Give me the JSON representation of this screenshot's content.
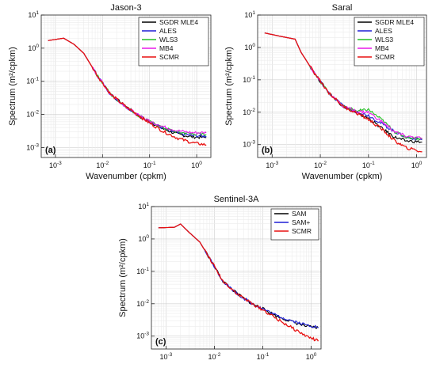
{
  "figure": {
    "panels": [
      "(a)",
      "(b)",
      "(c)"
    ]
  },
  "chart_data": [
    {
      "type": "line",
      "title": "Jason-3",
      "panel_label": "(a)",
      "xlabel": "Wavenumber (cpkm)",
      "ylabel": "Spectrum (m²/cpkm)",
      "xscale": "log",
      "yscale": "log",
      "xlim": [
        0.0005,
        2
      ],
      "ylim": [
        0.0005,
        10
      ],
      "xticks": [
        "10-3",
        "10-2",
        "10-1",
        "100"
      ],
      "yticks": [
        "10-3",
        "10-2",
        "10-1",
        "100",
        "101"
      ],
      "grid": true,
      "legend_position": "top-right",
      "series": [
        {
          "name": "SGDR MLE4",
          "color": "#000000",
          "x": [
            0.0007,
            0.0015,
            0.0025,
            0.004,
            0.008,
            0.015,
            0.03,
            0.06,
            0.1,
            0.2,
            0.4,
            0.8,
            1.6
          ],
          "y": [
            1.7,
            2.0,
            1.3,
            0.7,
            0.14,
            0.04,
            0.018,
            0.009,
            0.006,
            0.0036,
            0.0025,
            0.0021,
            0.002
          ]
        },
        {
          "name": "ALES",
          "color": "#1f1fd6",
          "x": [
            0.0007,
            0.0015,
            0.0025,
            0.004,
            0.008,
            0.015,
            0.03,
            0.06,
            0.1,
            0.2,
            0.4,
            0.8,
            1.6
          ],
          "y": [
            1.7,
            2.0,
            1.3,
            0.7,
            0.14,
            0.04,
            0.018,
            0.009,
            0.006,
            0.0037,
            0.0027,
            0.0023,
            0.0022
          ]
        },
        {
          "name": "WLS3",
          "color": "#22c022",
          "x": [
            0.0007,
            0.0015,
            0.0025,
            0.004,
            0.008,
            0.015,
            0.03,
            0.06,
            0.1,
            0.2,
            0.4,
            0.8,
            1.6
          ],
          "y": [
            1.7,
            2.0,
            1.3,
            0.7,
            0.14,
            0.04,
            0.018,
            0.009,
            0.006,
            0.0039,
            0.0029,
            0.0026,
            0.0025
          ]
        },
        {
          "name": "MB4",
          "color": "#e81ae8",
          "x": [
            0.0007,
            0.0015,
            0.0025,
            0.004,
            0.008,
            0.015,
            0.03,
            0.06,
            0.1,
            0.2,
            0.4,
            0.8,
            1.6
          ],
          "y": [
            1.7,
            2.0,
            1.3,
            0.7,
            0.14,
            0.04,
            0.018,
            0.009,
            0.0062,
            0.0042,
            0.0032,
            0.0028,
            0.0028
          ]
        },
        {
          "name": "SCMR",
          "color": "#e81010",
          "x": [
            0.0007,
            0.0015,
            0.0025,
            0.004,
            0.008,
            0.015,
            0.03,
            0.06,
            0.1,
            0.2,
            0.4,
            0.8,
            1.6
          ],
          "y": [
            1.7,
            2.0,
            1.3,
            0.7,
            0.14,
            0.04,
            0.018,
            0.009,
            0.0055,
            0.003,
            0.0019,
            0.0014,
            0.0012
          ]
        }
      ]
    },
    {
      "type": "line",
      "title": "Saral",
      "panel_label": "(b)",
      "xlabel": "Wavenumber (cpkm)",
      "ylabel": "Spectrum (m²/cpkm)",
      "xscale": "log",
      "yscale": "log",
      "xlim": [
        0.0005,
        1.6
      ],
      "ylim": [
        0.0004,
        10
      ],
      "xticks": [
        "10-3",
        "10-2",
        "10-1",
        "100"
      ],
      "yticks": [
        "10-3",
        "10-2",
        "10-1",
        "100",
        "101"
      ],
      "grid": true,
      "legend_position": "top-right",
      "series": [
        {
          "name": "SGDR MLE4",
          "color": "#000000",
          "x": [
            0.0007,
            0.0015,
            0.003,
            0.004,
            0.008,
            0.015,
            0.03,
            0.06,
            0.1,
            0.2,
            0.35,
            0.6,
            1.3
          ],
          "y": [
            2.8,
            2.2,
            1.8,
            0.7,
            0.14,
            0.04,
            0.015,
            0.009,
            0.0065,
            0.003,
            0.0017,
            0.0013,
            0.0012
          ]
        },
        {
          "name": "ALES",
          "color": "#1f1fd6",
          "x": [
            0.0007,
            0.0015,
            0.003,
            0.004,
            0.008,
            0.015,
            0.03,
            0.06,
            0.1,
            0.2,
            0.35,
            0.6,
            1.3
          ],
          "y": [
            2.8,
            2.2,
            1.8,
            0.7,
            0.14,
            0.04,
            0.015,
            0.01,
            0.008,
            0.0042,
            0.0025,
            0.0017,
            0.0014
          ]
        },
        {
          "name": "WLS3",
          "color": "#22c022",
          "x": [
            0.0007,
            0.0015,
            0.003,
            0.004,
            0.008,
            0.015,
            0.03,
            0.06,
            0.1,
            0.2,
            0.35,
            0.6,
            1.3
          ],
          "y": [
            2.8,
            2.2,
            1.8,
            0.7,
            0.14,
            0.04,
            0.015,
            0.011,
            0.012,
            0.0055,
            0.0025,
            0.0017,
            0.0015
          ]
        },
        {
          "name": "MB4",
          "color": "#e81ae8",
          "x": [
            0.0007,
            0.0015,
            0.003,
            0.004,
            0.008,
            0.015,
            0.03,
            0.06,
            0.1,
            0.2,
            0.35,
            0.6,
            1.3
          ],
          "y": [
            2.8,
            2.2,
            1.8,
            0.7,
            0.14,
            0.04,
            0.015,
            0.0105,
            0.01,
            0.0048,
            0.0025,
            0.0018,
            0.0016
          ]
        },
        {
          "name": "SCMR",
          "color": "#e81010",
          "x": [
            0.0007,
            0.0015,
            0.003,
            0.004,
            0.008,
            0.015,
            0.03,
            0.06,
            0.1,
            0.2,
            0.35,
            0.6,
            1.3
          ],
          "y": [
            2.8,
            2.2,
            1.8,
            0.7,
            0.14,
            0.04,
            0.015,
            0.009,
            0.006,
            0.0028,
            0.0013,
            0.0008,
            0.0006
          ]
        }
      ]
    },
    {
      "type": "line",
      "title": "Sentinel-3A",
      "panel_label": "(c)",
      "xlabel": "Wavenumber (cpkm)",
      "ylabel": "Spectrum (m²/cpkm)",
      "xscale": "log",
      "yscale": "log",
      "xlim": [
        0.0005,
        1.6
      ],
      "ylim": [
        0.0004,
        10
      ],
      "xticks": [
        "10-3",
        "10-2",
        "10-1",
        "100"
      ],
      "yticks": [
        "10-3",
        "10-2",
        "10-1",
        "100",
        "101"
      ],
      "grid": true,
      "legend_position": "top-right",
      "series": [
        {
          "name": "SAM",
          "color": "#000000",
          "x": [
            0.0007,
            0.0015,
            0.002,
            0.003,
            0.005,
            0.008,
            0.015,
            0.03,
            0.06,
            0.1,
            0.2,
            0.4,
            0.8,
            1.4
          ],
          "y": [
            2.2,
            2.3,
            2.9,
            1.6,
            0.8,
            0.25,
            0.05,
            0.02,
            0.01,
            0.007,
            0.004,
            0.0028,
            0.002,
            0.0018
          ]
        },
        {
          "name": "SAM+",
          "color": "#1f1fd6",
          "x": [
            0.0007,
            0.0015,
            0.002,
            0.003,
            0.005,
            0.008,
            0.015,
            0.03,
            0.06,
            0.1,
            0.2,
            0.4,
            0.8,
            1.4
          ],
          "y": [
            2.2,
            2.3,
            2.9,
            1.6,
            0.8,
            0.25,
            0.05,
            0.02,
            0.01,
            0.007,
            0.0042,
            0.003,
            0.0022,
            0.0019
          ]
        },
        {
          "name": "SCMR",
          "color": "#e81010",
          "x": [
            0.0007,
            0.0015,
            0.002,
            0.003,
            0.005,
            0.008,
            0.015,
            0.03,
            0.06,
            0.1,
            0.2,
            0.4,
            0.8,
            1.4
          ],
          "y": [
            2.2,
            2.3,
            2.9,
            1.6,
            0.8,
            0.25,
            0.05,
            0.02,
            0.01,
            0.0065,
            0.0033,
            0.0018,
            0.001,
            0.0007
          ]
        }
      ]
    }
  ]
}
